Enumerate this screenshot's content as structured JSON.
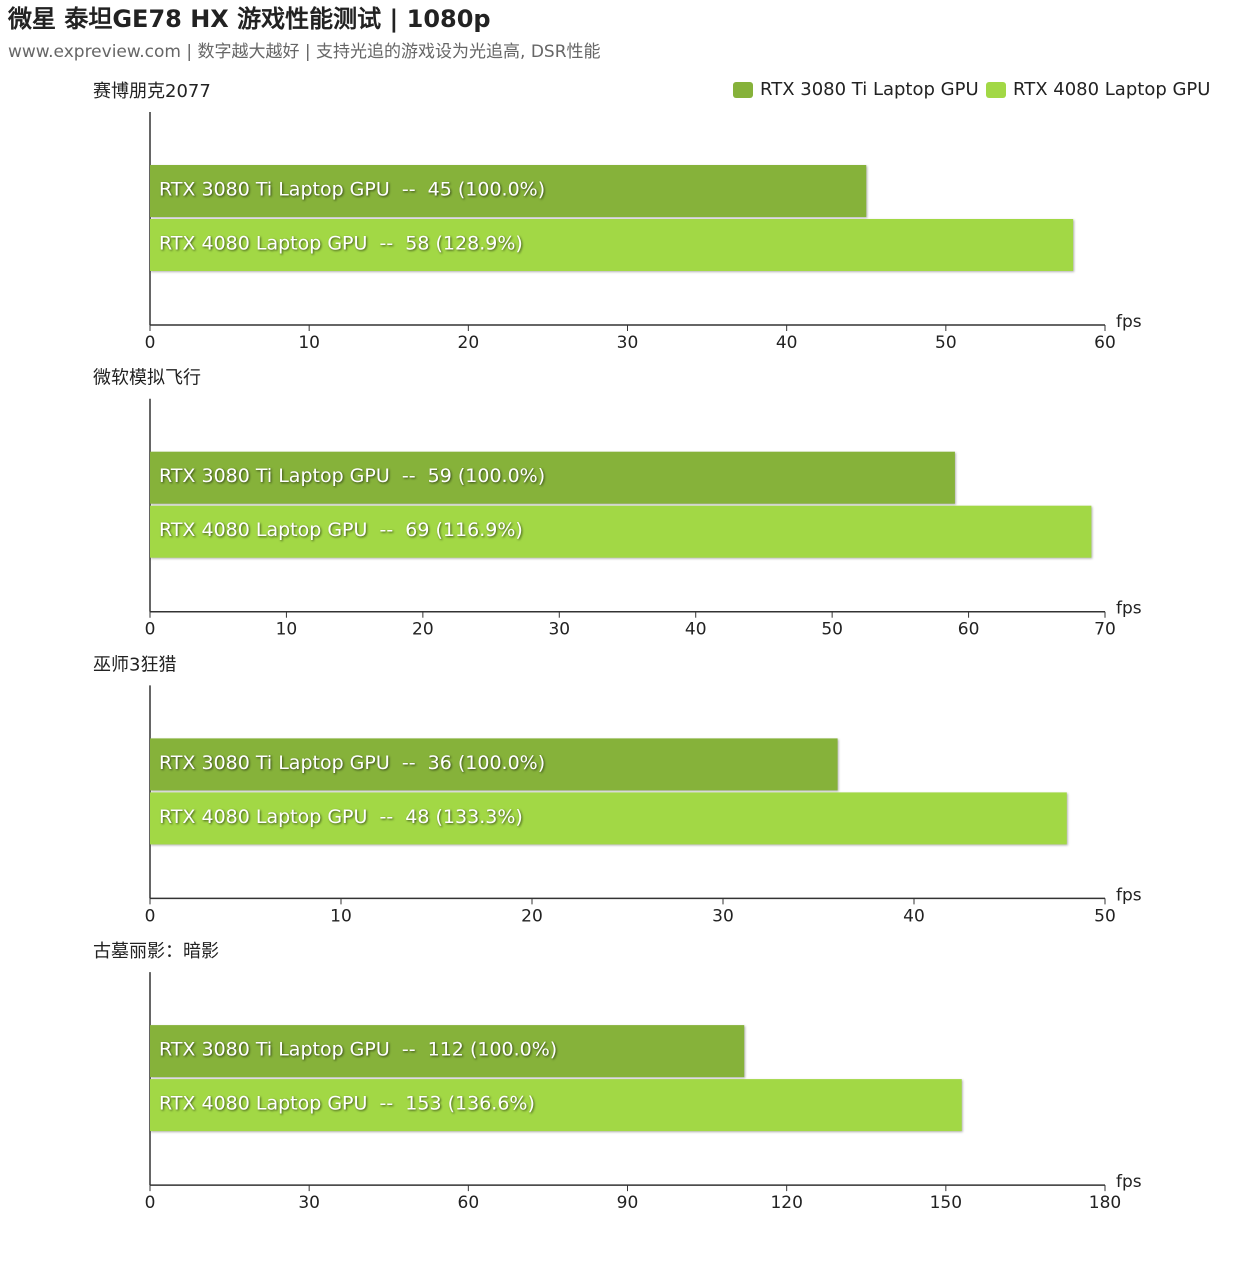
{
  "header": {
    "title": "微星 泰坦GE78 HX 游戏性能测试 | 1080p",
    "subtitle": "www.expreview.com | 数字越大越好 | 支持光追的游戏设为光追高, DSR性能"
  },
  "chart_data": [
    {
      "type": "barh",
      "title": "赛博朋克2077",
      "x_label": "fps",
      "legend": "top-right",
      "series": [
        {
          "name": "RTX 3080 Ti Laptop GPU",
          "color": "#86b23a",
          "values": [
            45
          ],
          "value_labels": [
            "RTX 3080 Ti Laptop GPU  --  45 (100.0%)"
          ]
        },
        {
          "name": "RTX 4080 Laptop GPU",
          "color": "#a2d845",
          "values": [
            58
          ],
          "value_labels": [
            "RTX 4080 Laptop GPU  --  58 (128.9%)"
          ]
        }
      ],
      "xlim": [
        0,
        60
      ],
      "xticks": [
        0,
        10,
        20,
        30,
        40,
        50,
        60
      ]
    },
    {
      "type": "barh",
      "title": "微软模拟飞行",
      "x_label": "fps",
      "series": [
        {
          "name": "RTX 3080 Ti Laptop GPU",
          "color": "#86b23a",
          "values": [
            59
          ],
          "value_labels": [
            "RTX 3080 Ti Laptop GPU  --  59 (100.0%)"
          ]
        },
        {
          "name": "RTX 4080 Laptop GPU",
          "color": "#a2d845",
          "values": [
            69
          ],
          "value_labels": [
            "RTX 4080 Laptop GPU  --  69 (116.9%)"
          ]
        }
      ],
      "xlim": [
        0,
        70
      ],
      "xticks": [
        0,
        10,
        20,
        30,
        40,
        50,
        60,
        70
      ]
    },
    {
      "type": "barh",
      "title": "巫师3狂猎",
      "x_label": "fps",
      "series": [
        {
          "name": "RTX 3080 Ti Laptop GPU",
          "color": "#86b23a",
          "values": [
            36
          ],
          "value_labels": [
            "RTX 3080 Ti Laptop GPU  --  36 (100.0%)"
          ]
        },
        {
          "name": "RTX 4080 Laptop GPU",
          "color": "#a2d845",
          "values": [
            48
          ],
          "value_labels": [
            "RTX 4080 Laptop GPU  --  48 (133.3%)"
          ]
        }
      ],
      "xlim": [
        0,
        50
      ],
      "xticks": [
        0,
        10,
        20,
        30,
        40,
        50
      ]
    },
    {
      "type": "barh",
      "title": "古墓丽影：暗影",
      "x_label": "fps",
      "series": [
        {
          "name": "RTX 3080 Ti Laptop GPU",
          "color": "#86b23a",
          "values": [
            112
          ],
          "value_labels": [
            "RTX 3080 Ti Laptop GPU  --  112 (100.0%)"
          ]
        },
        {
          "name": "RTX 4080 Laptop GPU",
          "color": "#a2d845",
          "values": [
            153
          ],
          "value_labels": [
            "RTX 4080 Laptop GPU  --  153 (136.6%)"
          ]
        }
      ],
      "xlim": [
        0,
        180
      ],
      "xticks": [
        0,
        30,
        60,
        90,
        120,
        150,
        180
      ]
    }
  ]
}
